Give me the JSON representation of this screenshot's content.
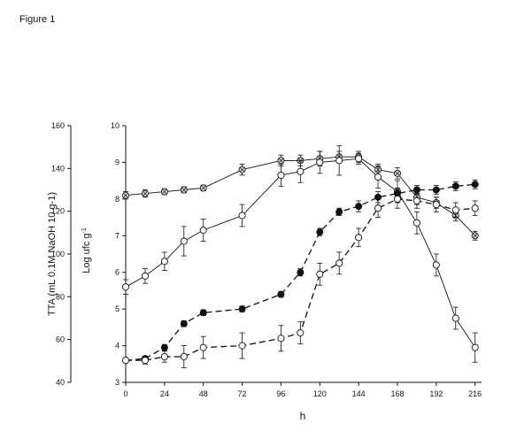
{
  "figure_label": "Figure 1",
  "chart_data": {
    "type": "line",
    "title": "",
    "xlabel": "h",
    "ylabel_left": "TTA (mL 0.1M NaOH 10 g-1)",
    "ylabel_right": "Log ufc g-1",
    "ylabel_right_unit": "Log ufc g",
    "ylabel_right_sup": "-1",
    "xlim": [
      0,
      220
    ],
    "ylim_left": [
      40,
      160
    ],
    "ylim_right": [
      3,
      10
    ],
    "x_ticks": [
      0,
      24,
      48,
      72,
      96,
      120,
      144,
      168,
      192,
      216
    ],
    "y_left_ticks": [
      40,
      60,
      80,
      100,
      120,
      140,
      160
    ],
    "y_right_ticks": [
      3,
      4,
      5,
      6,
      7,
      8,
      9,
      10
    ],
    "grid": false,
    "legend": "none",
    "series": [
      {
        "style": "solid-thin",
        "marker": "crossed-circle",
        "x": [
          0,
          12,
          24,
          36,
          48,
          72,
          96,
          108,
          120,
          132,
          144,
          156,
          168,
          180,
          192,
          204,
          216
        ],
        "y": [
          8.1,
          8.15,
          8.2,
          8.25,
          8.3,
          8.8,
          9.05,
          9.05,
          9.1,
          9.15,
          9.15,
          8.8,
          8.7,
          8.05,
          7.9,
          7.55,
          7.0
        ],
        "err": [
          0.1,
          0.1,
          0.08,
          0.08,
          0.08,
          0.15,
          0.15,
          0.15,
          0.2,
          0.15,
          0.15,
          0.15,
          0.15,
          0.2,
          0.15,
          0.15,
          0.12
        ]
      },
      {
        "style": "solid-thin",
        "marker": "open-circle",
        "x": [
          0,
          12,
          24,
          36,
          48,
          72,
          96,
          108,
          120,
          132,
          144,
          156,
          168,
          180,
          192,
          204,
          216
        ],
        "y": [
          5.6,
          5.9,
          6.3,
          6.85,
          7.15,
          7.55,
          8.65,
          8.75,
          9.0,
          9.05,
          9.1,
          8.6,
          8.2,
          7.35,
          6.2,
          4.75,
          3.95
        ],
        "err": [
          0.2,
          0.2,
          0.25,
          0.4,
          0.3,
          0.3,
          0.3,
          0.3,
          0.3,
          0.4,
          0.15,
          0.3,
          0.3,
          0.3,
          0.3,
          0.3,
          0.4
        ]
      },
      {
        "style": "dashed",
        "marker": "filled-circle",
        "x": [
          0,
          12,
          24,
          36,
          48,
          72,
          96,
          108,
          120,
          132,
          144,
          156,
          168,
          180,
          192,
          204,
          216
        ],
        "y": [
          3.6,
          3.65,
          3.95,
          4.6,
          4.9,
          5.0,
          5.4,
          6.0,
          7.1,
          7.65,
          7.8,
          8.05,
          8.15,
          8.25,
          8.25,
          8.35,
          8.4
        ],
        "err": [
          0.05,
          0.05,
          0.08,
          0.08,
          0.08,
          0.08,
          0.08,
          0.1,
          0.1,
          0.1,
          0.15,
          0.15,
          0.15,
          0.12,
          0.12,
          0.12,
          0.12
        ]
      },
      {
        "style": "dashed",
        "marker": "open-circle",
        "x": [
          0,
          12,
          24,
          36,
          48,
          72,
          96,
          108,
          120,
          132,
          144,
          156,
          168,
          180,
          192,
          204,
          216
        ],
        "y": [
          3.6,
          3.6,
          3.7,
          3.7,
          3.95,
          4.0,
          4.2,
          4.35,
          5.95,
          6.25,
          6.95,
          7.75,
          8.0,
          7.95,
          7.85,
          7.7,
          7.75
        ],
        "err": [
          0.05,
          0.1,
          0.15,
          0.3,
          0.3,
          0.35,
          0.35,
          0.3,
          0.3,
          0.3,
          0.25,
          0.25,
          0.25,
          0.2,
          0.2,
          0.2,
          0.2
        ]
      }
    ]
  }
}
